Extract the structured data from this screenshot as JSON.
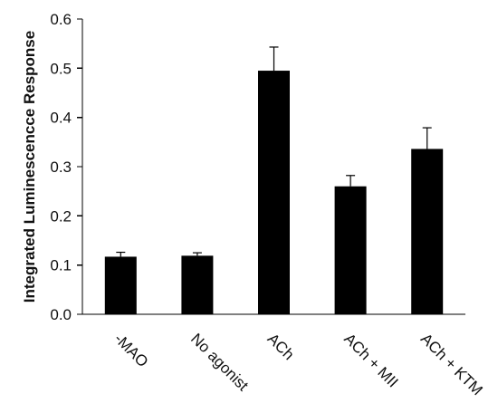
{
  "chart_data": {
    "type": "bar",
    "title": "",
    "xlabel": "",
    "ylabel": "Integrated Luminescencce Response",
    "categories": [
      "-MAO",
      "No agonist",
      "ACh",
      "ACh + MII",
      "ACh + KTM"
    ],
    "values": [
      0.117,
      0.119,
      0.495,
      0.26,
      0.336
    ],
    "errors": [
      0.009,
      0.006,
      0.048,
      0.022,
      0.043
    ],
    "ylim": [
      0,
      0.6
    ],
    "yticks": [
      "0.0",
      "0.1",
      "0.2",
      "0.3",
      "0.4",
      "0.5",
      "0.6"
    ],
    "ytick_values": [
      0,
      0.1,
      0.2,
      0.3,
      0.4,
      0.5,
      0.6
    ],
    "bar_color": "#000000",
    "grid": false,
    "legend": false
  }
}
